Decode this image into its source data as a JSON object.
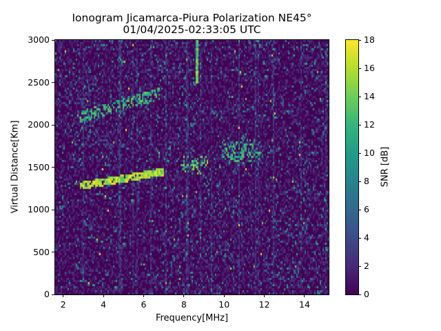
{
  "title": {
    "line1": "Ionogram Jicamarca-Piura Polarization NE45°",
    "line2": "01/04/2025-02:33:05 UTC"
  },
  "axes": {
    "xlabel": "Frequency[MHz]",
    "ylabel": "Virtual Distance[Km]",
    "xticks": [
      "2",
      "4",
      "6",
      "8",
      "10",
      "12",
      "14"
    ],
    "yticks": [
      "0",
      "500",
      "1000",
      "1500",
      "2000",
      "2500",
      "3000"
    ]
  },
  "colorbar": {
    "label": "SNR [dB]",
    "ticks": [
      "0",
      "2",
      "4",
      "6",
      "8",
      "10",
      "12",
      "14",
      "16",
      "18"
    ],
    "colormap": "viridis",
    "colors": {
      "min": "#440154",
      "max": "#fde725"
    }
  },
  "chart_data": {
    "type": "heatmap",
    "title": "Ionogram Jicamarca-Piura Polarization NE45° 01/04/2025-02:33:05 UTC",
    "xlabel": "Frequency[MHz]",
    "ylabel": "Virtual Distance[Km]",
    "zlabel": "SNR [dB]",
    "xlim": [
      1.6,
      15.2
    ],
    "ylim": [
      0,
      3000
    ],
    "zlim": [
      0,
      18
    ],
    "xticks": [
      2,
      4,
      6,
      8,
      10,
      12,
      14
    ],
    "yticks": [
      0,
      500,
      1000,
      1500,
      2000,
      2500,
      3000
    ],
    "zticks": [
      0,
      2,
      4,
      6,
      8,
      10,
      12,
      14,
      16,
      18
    ],
    "grid": false,
    "colorbar_position": "right",
    "features": [
      {
        "name": "F-layer trace (1-hop)",
        "freq_start_mhz": 2.8,
        "freq_end_mhz": 7.0,
        "dist_start_km": 1290,
        "dist_end_km": 1460,
        "snr_db": 18
      },
      {
        "name": "spread echo cluster",
        "freq_start_mhz": 7.8,
        "freq_end_mhz": 9.2,
        "dist_start_km": 1420,
        "dist_end_km": 1650,
        "snr_db": 16
      },
      {
        "name": "spread echo cluster",
        "freq_start_mhz": 9.8,
        "freq_end_mhz": 11.8,
        "dist_start_km": 1520,
        "dist_end_km": 1900,
        "snr_db": 14
      },
      {
        "name": "F-layer trace (2-hop)",
        "freq_start_mhz": 2.8,
        "freq_end_mhz": 6.8,
        "dist_start_km": 2100,
        "dist_end_km": 2380,
        "snr_db": 14
      },
      {
        "name": "interference line",
        "freq_mhz": 8.6,
        "dist_start_km": 2500,
        "dist_end_km": 3000,
        "snr_db": 14
      }
    ]
  }
}
